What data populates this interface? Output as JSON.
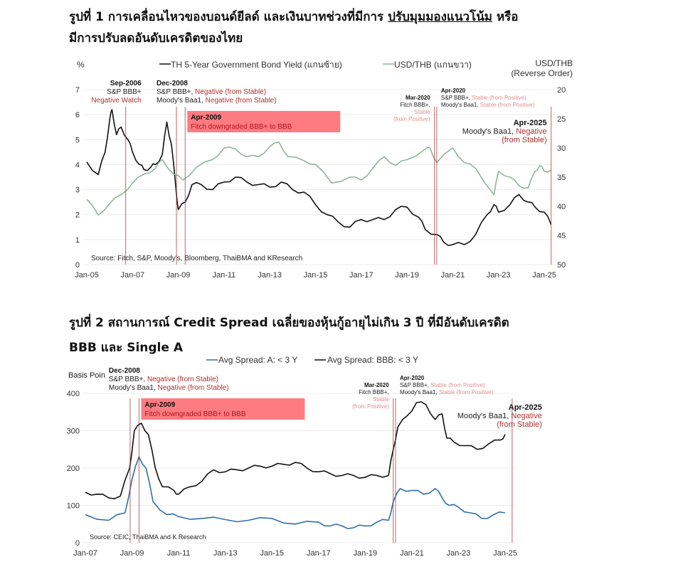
{
  "titles": {
    "fig1_line1_a": "รูปที่ 1 การเคลื่อนไหวของบอนด์ยีลด์ และเงินบาทช่วงที่มีการ ",
    "fig1_line1_u": "ปรับมุมมองแนวโน้ม",
    "fig1_line1_b": "  หรือ",
    "fig1_line2": "มีการปรับลดอันดับเครดิตของไทย",
    "fig2_line1": "รูปที่ 2 สถานการณ์ Credit Spread เฉลี่ยของหุ้นกู้อายุไม่เกิน 3 ปี ที่มีอันดับเครดิต",
    "fig2_line2": "BBB และ Single A"
  },
  "chart_data": [
    {
      "type": "line",
      "ylabel": "%",
      "y2label_1": "USD/THB",
      "y2label_2": "(Reverse Order)",
      "xlim": [
        2005,
        2025.5
      ],
      "ylim": [
        0,
        7
      ],
      "y2lim": [
        20,
        50
      ],
      "y2_reversed": true,
      "xticks": [
        "Jan-05",
        "Jan-07",
        "Jan-09",
        "Jan-11",
        "Jan-13",
        "Jan-15",
        "Jan-17",
        "Jan-19",
        "Jan-21",
        "Jan-23",
        "Jan-25"
      ],
      "yticks": [
        "0",
        "1",
        "2",
        "3",
        "4",
        "5",
        "6",
        "7"
      ],
      "y2ticks": [
        "20",
        "25",
        "30",
        "35",
        "40",
        "45",
        "50"
      ],
      "grid": true,
      "legend_placement": "top",
      "source": "Source: Fitch, S&P, Moody's, Bloomberg, ThaiBMA and KResearch",
      "series": [
        {
          "name": "TH 5-Year Government Bond Yield (แกนซ้าย)",
          "axis": "left",
          "color": "#111111",
          "x": [
            2005.0,
            2005.5,
            2005.8,
            2006.0,
            2006.1,
            2006.3,
            2006.5,
            2006.8,
            2007.0,
            2007.3,
            2007.5,
            2007.8,
            2008.0,
            2008.3,
            2008.5,
            2008.7,
            2008.9,
            2009.0,
            2009.3,
            2009.6,
            2010.0,
            2010.5,
            2011.0,
            2011.5,
            2012.0,
            2012.5,
            2013.0,
            2013.5,
            2014.0,
            2014.5,
            2015.0,
            2015.5,
            2016.0,
            2016.5,
            2017.0,
            2017.5,
            2018.0,
            2018.5,
            2019.0,
            2019.5,
            2019.8,
            2020.3,
            2020.6,
            2021.0,
            2021.5,
            2022.0,
            2022.5,
            2022.8,
            2023.0,
            2023.5,
            2023.9,
            2024.3,
            2024.6,
            2025.0,
            2025.3
          ],
          "y": [
            4.1,
            3.6,
            4.5,
            5.8,
            6.2,
            5.2,
            5.5,
            5.0,
            4.5,
            4.0,
            3.8,
            3.9,
            4.0,
            4.4,
            5.7,
            4.8,
            3.0,
            2.2,
            2.5,
            3.2,
            3.2,
            3.0,
            3.3,
            3.5,
            3.3,
            3.2,
            3.1,
            3.3,
            3.0,
            2.9,
            2.4,
            2.0,
            1.7,
            1.5,
            1.8,
            1.8,
            1.8,
            2.2,
            2.3,
            1.9,
            1.4,
            1.2,
            0.9,
            0.8,
            0.8,
            1.2,
            2.0,
            2.4,
            2.1,
            2.4,
            2.8,
            2.5,
            2.3,
            2.1,
            1.6
          ]
        },
        {
          "name": "USD/THB (แกนขวา)",
          "axis": "right",
          "color": "#8fb59a",
          "x": [
            2005.0,
            2005.5,
            2006.0,
            2006.5,
            2007.0,
            2007.5,
            2008.0,
            2008.3,
            2008.8,
            2009.2,
            2009.8,
            2010.5,
            2011.0,
            2011.5,
            2012.0,
            2012.5,
            2013.0,
            2013.4,
            2013.8,
            2014.5,
            2015.0,
            2015.7,
            2016.5,
            2017.0,
            2017.5,
            2018.0,
            2018.5,
            2019.0,
            2019.8,
            2020.0,
            2020.3,
            2021.0,
            2021.5,
            2022.0,
            2022.8,
            2023.0,
            2023.5,
            2023.9,
            2024.3,
            2024.6,
            2024.8,
            2025.0,
            2025.3
          ],
          "y": [
            38.8,
            41.5,
            39.5,
            38,
            36,
            34.5,
            33.5,
            32,
            34.5,
            35.5,
            33.3,
            32,
            30,
            30.2,
            31.5,
            31.5,
            29.8,
            29,
            31.5,
            32.2,
            32.8,
            36,
            35,
            35.5,
            33.5,
            31.5,
            33,
            32,
            30.2,
            30,
            32.5,
            30,
            32.5,
            33.5,
            38,
            34,
            35,
            36.5,
            36.8,
            34,
            33,
            34,
            33.8
          ]
        }
      ],
      "events": [
        {
          "date": 2006.7,
          "head": "Sep-2006",
          "l1a": "S&P BBB+",
          "l1b": "",
          "l2a": "",
          "l2b": "Negative Watch"
        },
        {
          "date": 2008.92,
          "head": "Dec-2008",
          "l1a": "S&P BBB+, ",
          "l1b": "Negative (from Stable)",
          "l2a": "Moody's Baa1, ",
          "l2b": "Negative (from Stable)"
        },
        {
          "date": 2009.3,
          "head": "Apr-2009",
          "l1a": "",
          "l1b": "Fitch downgraded BBB+ to BBB",
          "l2a": "",
          "l2b": ""
        },
        {
          "date": 2020.2,
          "head": "Mar-2020",
          "l1a": "Fitch BBB+,",
          "l1b": "Stable",
          "l2a": "",
          "l2b": "(from Positive)"
        },
        {
          "date": 2020.3,
          "head": "Apr-2020",
          "l1a": "S&P BBB+, ",
          "l1b": "Stable (from Positive)",
          "l2a": "Moody's Baa1, ",
          "l2b": "Stable (from Positive)"
        },
        {
          "date": 2025.3,
          "head": "Apr-2025",
          "l1a": "Moody's Baa1, ",
          "l1b": "Negative",
          "l2a": "",
          "l2b": "(from Stable)"
        }
      ]
    },
    {
      "type": "line",
      "ylabel": "Basis Poin",
      "xlim": [
        2007,
        2025.5
      ],
      "ylim": [
        0,
        400
      ],
      "xticks": [
        "Jan-07",
        "Jan-09",
        "Jan-11",
        "Jan-13",
        "Jan-15",
        "Jan-17",
        "Jan-19",
        "Jan-21",
        "Jan-23",
        "Jan-25"
      ],
      "yticks": [
        "0",
        "100",
        "200",
        "300",
        "400"
      ],
      "grid": true,
      "legend_placement": "top",
      "source": "Source: CEIC, ThaiBMA and K Research",
      "series": [
        {
          "name": "Avg Spread: A: < 3 Y",
          "color": "#2f6fa8",
          "x": [
            2007.0,
            2008.0,
            2008.7,
            2009.0,
            2009.3,
            2009.6,
            2009.9,
            2010.5,
            2011.0,
            2012.0,
            2013.0,
            2014.0,
            2015.0,
            2016.0,
            2017.0,
            2017.5,
            2018.0,
            2018.5,
            2019.0,
            2019.5,
            2020.0,
            2020.2,
            2020.5,
            2021.0,
            2021.5,
            2022.0,
            2022.3,
            2022.6,
            2023.0,
            2023.5,
            2024.0,
            2024.5,
            2025.0
          ],
          "y": [
            75,
            60,
            80,
            170,
            230,
            200,
            110,
            75,
            70,
            65,
            62,
            60,
            65,
            50,
            55,
            45,
            45,
            40,
            45,
            55,
            60,
            110,
            145,
            140,
            130,
            145,
            120,
            100,
            95,
            80,
            65,
            75,
            80
          ]
        },
        {
          "name": "Avg Spread: BBB: < 3 Y",
          "color": "#111111",
          "x": [
            2007.0,
            2007.5,
            2008.0,
            2008.5,
            2008.9,
            2009.1,
            2009.4,
            2009.7,
            2010.0,
            2010.3,
            2010.8,
            2011.0,
            2011.5,
            2012.0,
            2012.5,
            2013.0,
            2013.5,
            2014.0,
            2014.5,
            2015.0,
            2015.5,
            2016.0,
            2016.5,
            2017.0,
            2017.5,
            2018.0,
            2018.5,
            2019.0,
            2019.5,
            2020.0,
            2020.2,
            2020.4,
            2020.8,
            2021.2,
            2021.6,
            2022.0,
            2022.3,
            2022.5,
            2022.8,
            2023.3,
            2023.8,
            2024.3,
            2024.8,
            2025.0
          ],
          "y": [
            135,
            130,
            120,
            125,
            200,
            300,
            320,
            290,
            200,
            150,
            140,
            130,
            150,
            165,
            195,
            190,
            195,
            200,
            205,
            205,
            210,
            215,
            200,
            190,
            185,
            180,
            180,
            175,
            180,
            180,
            250,
            310,
            340,
            375,
            370,
            330,
            345,
            280,
            270,
            260,
            250,
            265,
            275,
            290
          ]
        }
      ],
      "events": [
        {
          "date": 2008.92,
          "head": "Dec-2008",
          "l1a": "S&P BBB+, ",
          "l1b": "Negative (from Stable)",
          "l2a": "Moody's Baa1, ",
          "l2b": "Negative (from Stable)"
        },
        {
          "date": 2009.3,
          "head": "Apr-2009",
          "l1a": "",
          "l1b": "Fitch downgraded BBB+ to BBB",
          "l2a": "",
          "l2b": ""
        },
        {
          "date": 2020.2,
          "head": "Mar-2020",
          "l1a": "Fitch BBB+,",
          "l1b": "Stable",
          "l2a": "",
          "l2b": "(from Positive)"
        },
        {
          "date": 2020.3,
          "head": "Apr-2020",
          "l1a": "S&P BBB+, ",
          "l1b": "Stable (from Positive)",
          "l2a": "Moody's Baa1, ",
          "l2b": "Stable (from Positive)"
        },
        {
          "date": 2025.3,
          "head": "Apr-2025",
          "l1a": "Moody's Baa1, ",
          "l1b": "Negative",
          "l2a": "",
          "l2b": "(from Stable)"
        }
      ]
    }
  ]
}
